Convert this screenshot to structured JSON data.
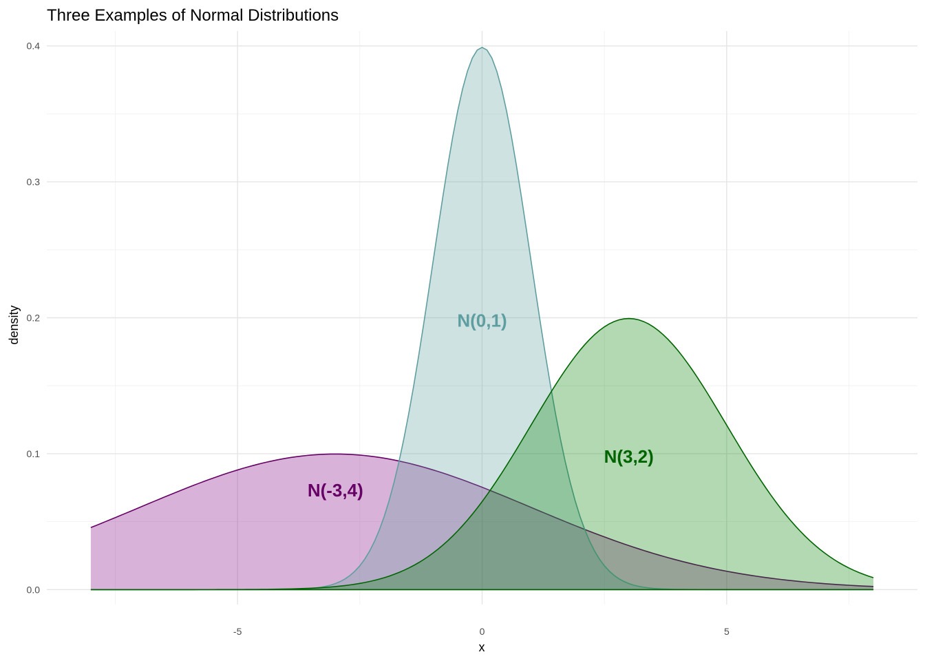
{
  "chart_data": {
    "type": "area",
    "title": "Three Examples of Normal Distributions",
    "xlabel": "x",
    "ylabel": "density",
    "xlim": [
      -8.9,
      8.9
    ],
    "ylim": [
      -0.011,
      0.411
    ],
    "x_range": [
      -8,
      8
    ],
    "x_ticks": [
      -5,
      0,
      5
    ],
    "x_minor_ticks": [
      -7.5,
      -2.5,
      2.5,
      7.5
    ],
    "y_ticks": [
      0.0,
      0.1,
      0.2,
      0.3,
      0.4
    ],
    "y_minor_ticks": [
      0.05,
      0.15,
      0.25,
      0.35
    ],
    "x_tick_labels": [
      "-5",
      "0",
      "5"
    ],
    "y_tick_labels": [
      "0.0",
      "0.1",
      "0.2",
      "0.3",
      "0.4"
    ],
    "grid": true,
    "legend": "none",
    "series": [
      {
        "label": "N(-3,4)",
        "mean": -3,
        "sd": 4,
        "fill": "#800080",
        "fill_opacity": 0.3,
        "stroke": "#660066",
        "label_color": "#660066",
        "label_position": {
          "x": -3,
          "y": 0.073
        }
      },
      {
        "label": "N(0,1)",
        "mean": 0,
        "sd": 1,
        "fill": "#5f9ea0",
        "fill_opacity": 0.3,
        "stroke": "#5f9ea0",
        "label_color": "#5f9ea0",
        "label_position": {
          "x": 0,
          "y": 0.198
        }
      },
      {
        "label": "N(3,2)",
        "mean": 3,
        "sd": 2,
        "fill": "#008000",
        "fill_opacity": 0.3,
        "stroke": "#006400",
        "label_color": "#006400",
        "label_position": {
          "x": 3,
          "y": 0.098
        }
      }
    ]
  }
}
